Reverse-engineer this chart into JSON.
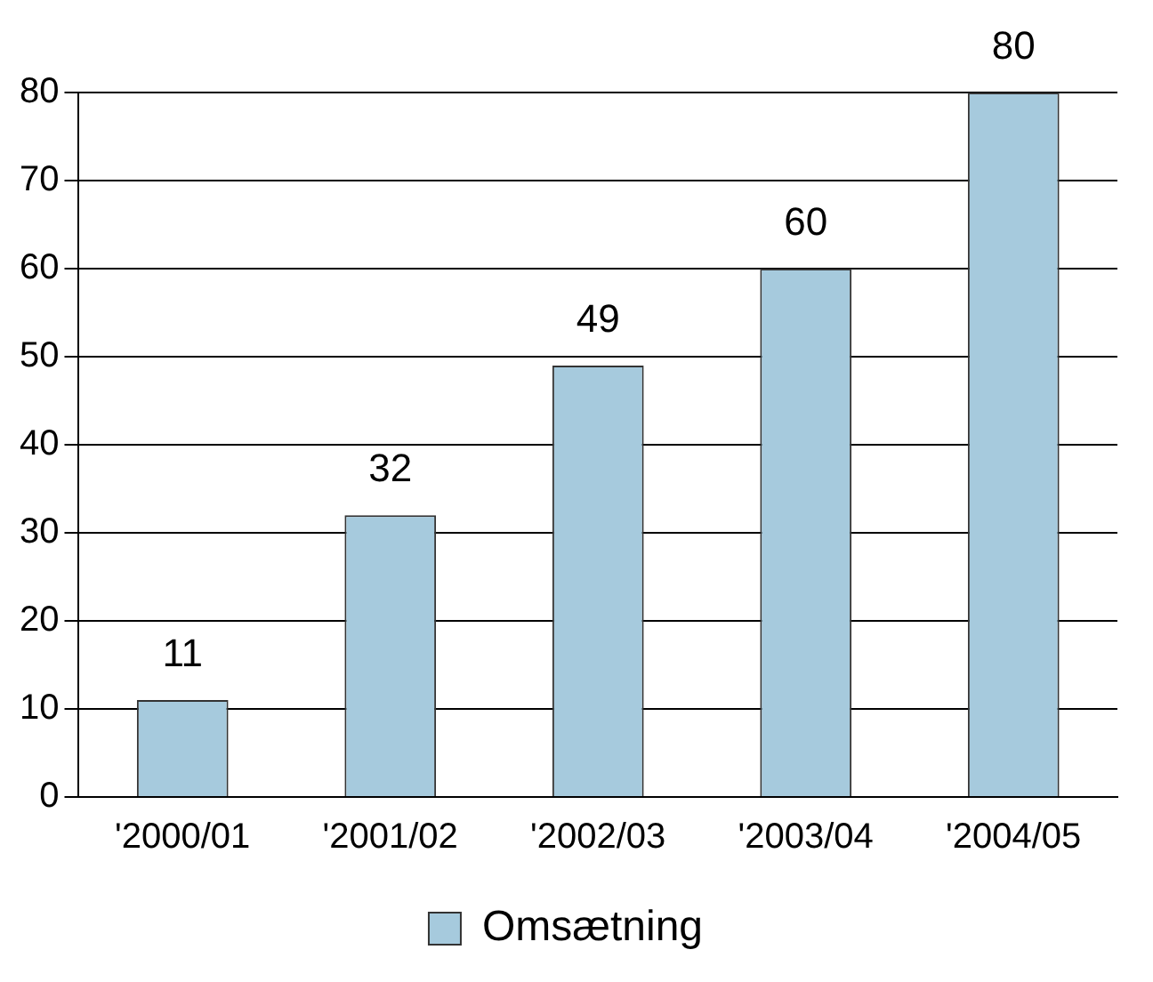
{
  "chart_data": {
    "type": "bar",
    "categories": [
      "'2000/01",
      "'2001/02",
      "'2002/03",
      "'2003/04",
      "'2004/05"
    ],
    "series": [
      {
        "name": "Omsætning",
        "color": "#a6cadd",
        "values": [
          11,
          32,
          49,
          60,
          80
        ]
      }
    ],
    "ylim": [
      0,
      80
    ],
    "yticks": [
      0,
      10,
      20,
      30,
      40,
      50,
      60,
      70,
      80
    ],
    "grid": "y",
    "legend": "bottom",
    "data_labels": true
  }
}
